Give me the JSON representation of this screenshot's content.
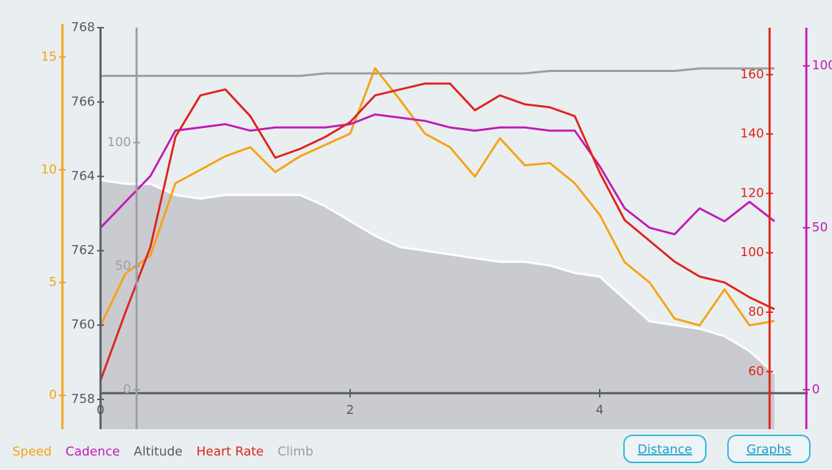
{
  "chart_data": {
    "type": "line",
    "x": [
      0,
      0.2,
      0.4,
      0.6,
      0.8,
      1,
      1.2,
      1.4,
      1.6,
      1.8,
      2,
      2.2,
      2.4,
      2.6,
      2.8,
      3,
      3.2,
      3.4,
      3.6,
      3.8,
      4,
      4.2,
      4.4,
      4.6,
      4.8,
      5,
      5.2,
      5.4
    ],
    "xlim": [
      0,
      5.5
    ],
    "xticks": [
      0,
      2,
      4
    ],
    "series": [
      {
        "name": "Speed",
        "color": "#f5a312",
        "ylim": [
          -1.5,
          16.3
        ],
        "yticks": [
          0,
          5,
          10,
          15
        ],
        "values": [
          3.1,
          5.4,
          6.2,
          9.4,
          10.0,
          10.6,
          11.0,
          9.9,
          10.6,
          11.1,
          11.6,
          14.5,
          13.1,
          11.6,
          11.0,
          9.7,
          11.4,
          10.2,
          10.3,
          9.4,
          8.0,
          5.9,
          5.0,
          3.4,
          3.1,
          4.7,
          3.1,
          3.3
        ]
      },
      {
        "name": "Cadence",
        "color": "#c21bb5",
        "ylim": [
          -12.2,
          111.8
        ],
        "yticks": [
          0,
          50,
          100
        ],
        "values": [
          50,
          58,
          66,
          80,
          81,
          82,
          80,
          81,
          81,
          81,
          82,
          85,
          84,
          83,
          81,
          80,
          81,
          81,
          80,
          80,
          69,
          56,
          50,
          48,
          56,
          52,
          58,
          52
        ]
      },
      {
        "name": "Altitude",
        "color": "#555a60",
        "area": true,
        "ylim": [
          757.2,
          768
        ],
        "yticks": [
          758,
          760,
          762,
          764,
          766,
          768
        ],
        "values": [
          763.9,
          763.8,
          763.8,
          763.5,
          763.4,
          763.5,
          763.5,
          763.5,
          763.5,
          763.2,
          762.8,
          762.4,
          762.1,
          762.0,
          761.9,
          761.8,
          761.7,
          761.7,
          761.6,
          761.4,
          761.3,
          760.7,
          760.1,
          760.0,
          759.9,
          759.7,
          759.3,
          758.7
        ]
      },
      {
        "name": "Heart Rate",
        "color": "#e0231b",
        "ylim": [
          40.6,
          175.8
        ],
        "yticks": [
          60,
          80,
          100,
          120,
          140,
          160
        ],
        "values": [
          57,
          80,
          102,
          139,
          153,
          155,
          146,
          132,
          135,
          139,
          144,
          153,
          155,
          157,
          157,
          148,
          153,
          150,
          149,
          146,
          127,
          111,
          104,
          97,
          92,
          90,
          85,
          81
        ]
      },
      {
        "name": "Climb",
        "color": "#9a9ea3",
        "ylim": [
          -16,
          146.5
        ],
        "yticks": [
          0,
          50,
          100
        ],
        "values": [
          127,
          127,
          127,
          127,
          127,
          127,
          127,
          127,
          127,
          128,
          128,
          128,
          128,
          128,
          128,
          128,
          128,
          128,
          129,
          129,
          129,
          129,
          129,
          129,
          130,
          130,
          130,
          130
        ]
      }
    ]
  },
  "buttons": [
    "Distance",
    "Graphs"
  ]
}
